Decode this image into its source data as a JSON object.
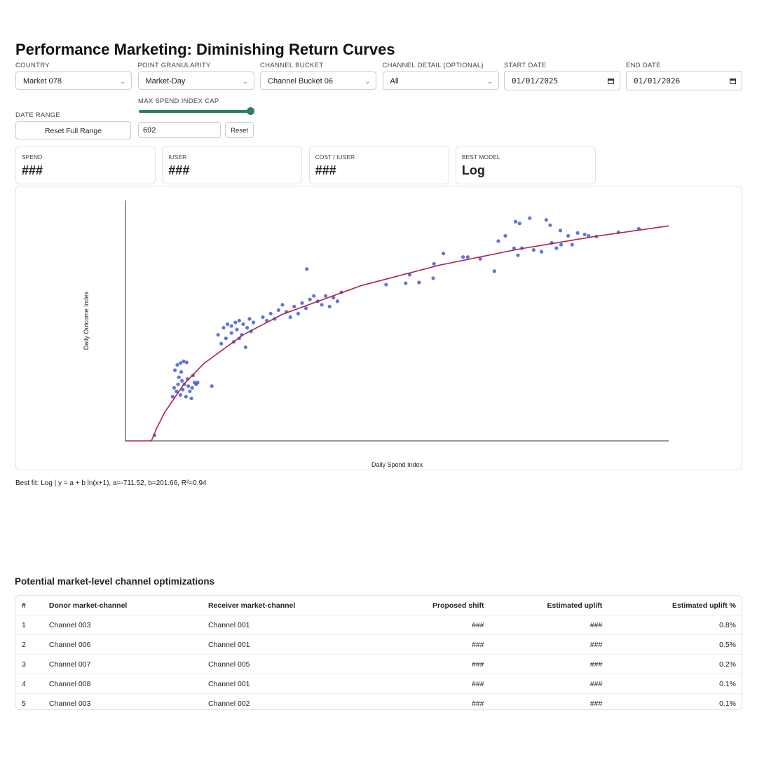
{
  "header": {
    "title": "Performance Marketing: Diminishing Return Curves"
  },
  "filters": [
    {
      "label": "COUNTRY",
      "value": "Market 078"
    },
    {
      "label": "POINT GRANULARITY",
      "value": "Market-Day"
    },
    {
      "label": "CHANNEL BUCKET",
      "value": "Channel Bucket 06"
    },
    {
      "label": "CHANNEL DETAIL (OPTIONAL)",
      "value": "All"
    }
  ],
  "dates": [
    {
      "label": "START DATE",
      "value": "01/01/2025"
    },
    {
      "label": "END DATE",
      "value": "01/01/2026"
    }
  ],
  "date_range": {
    "label": "DATE RANGE",
    "button": "Reset Full Range"
  },
  "spend_cap": {
    "label": "MAX SPEND INDEX CAP",
    "value": 692,
    "button": "Reset"
  },
  "kpis": [
    {
      "label": "SPEND",
      "value": "###"
    },
    {
      "label": "IUSER",
      "value": "###"
    },
    {
      "label": "COST / IUSER",
      "value": "###"
    },
    {
      "label": "BEST MODEL",
      "value": "Log"
    }
  ],
  "chart_data": {
    "type": "scatter",
    "x_label": "Daily Spend Index",
    "y_label": "Daily Outcome Index",
    "xlim": [
      0,
      692
    ],
    "ylim": [
      0,
      680
    ],
    "series": [
      {
        "color": "#3f5fd0",
        "x": [
          63,
          66,
          70,
          74,
          78,
          68,
          72,
          75,
          80,
          85,
          65,
          70,
          77,
          82,
          88,
          62,
          67,
          73,
          79,
          84,
          60,
          71,
          86,
          90,
          118,
          125,
          130,
          135,
          140,
          145,
          150,
          155,
          160,
          128,
          138,
          148,
          153,
          135,
          142,
          122,
          158,
          163,
          145,
          175,
          185,
          195,
          205,
          215,
          225,
          235,
          245,
          255,
          265,
          275,
          180,
          190,
          210,
          220,
          230,
          250,
          270,
          200,
          240,
          260,
          332,
          357,
          362,
          374,
          392,
          393,
          405,
          430,
          436,
          452,
          470,
          475,
          484,
          495,
          500,
          505,
          520,
          497,
          502,
          515,
          536,
          541,
          543,
          549,
          555,
          530,
          564,
          576,
          585,
          590,
          600,
          628,
          654,
          554,
          569,
          37,
          231,
          110,
          92
        ],
        "values": [
          200,
          215,
          220,
          225,
          222,
          180,
          170,
          160,
          155,
          150,
          140,
          130,
          125,
          140,
          165,
          150,
          160,
          145,
          175,
          120,
          125,
          195,
          185,
          160,
          300,
          320,
          330,
          325,
          335,
          340,
          330,
          320,
          310,
          290,
          280,
          300,
          265,
          305,
          315,
          275,
          345,
          335,
          290,
          350,
          360,
          370,
          365,
          380,
          390,
          400,
          395,
          410,
          405,
          420,
          340,
          345,
          350,
          360,
          375,
          385,
          395,
          385,
          410,
          380,
          442,
          446,
          470,
          448,
          460,
          501,
          530,
          520,
          520,
          515,
          480,
          565,
          580,
          545,
          525,
          545,
          540,
          620,
          615,
          630,
          625,
          610,
          560,
          545,
          555,
          535,
          580,
          588,
          584,
          580,
          578,
          590,
          600,
          595,
          555,
          16,
          486,
          155,
          165
        ]
      },
      {
        "type": "line",
        "color": "#b0234a",
        "x": [
          0,
          33,
          40,
          50,
          75,
          100,
          150,
          200,
          300,
          400,
          500,
          600,
          692
        ],
        "values": [
          0,
          0,
          37,
          81,
          162,
          219,
          300,
          358,
          439,
          497,
          542,
          579,
          608
        ]
      }
    ],
    "annotation": "Best fit: Log | y = a + b ln(x+1), a=-711.52, b=201.66, R²=0.94"
  },
  "table": {
    "title": "Potential market-level channel optimizations",
    "columns": [
      "#",
      "Donor market-channel",
      "Receiver market-channel",
      "Proposed shift",
      "Estimated uplift",
      "Estimated uplift %"
    ],
    "rows": [
      [
        "1",
        "Channel 003",
        "Channel 001",
        "###",
        "###",
        "0.8%"
      ],
      [
        "2",
        "Channel 006",
        "Channel 001",
        "###",
        "###",
        "0.5%"
      ],
      [
        "3",
        "Channel 007",
        "Channel 005",
        "###",
        "###",
        "0.2%"
      ],
      [
        "4",
        "Channel 008",
        "Channel 001",
        "###",
        "###",
        "0.1%"
      ],
      [
        "5",
        "Channel 003",
        "Channel 002",
        "###",
        "###",
        "0.1%"
      ]
    ]
  }
}
